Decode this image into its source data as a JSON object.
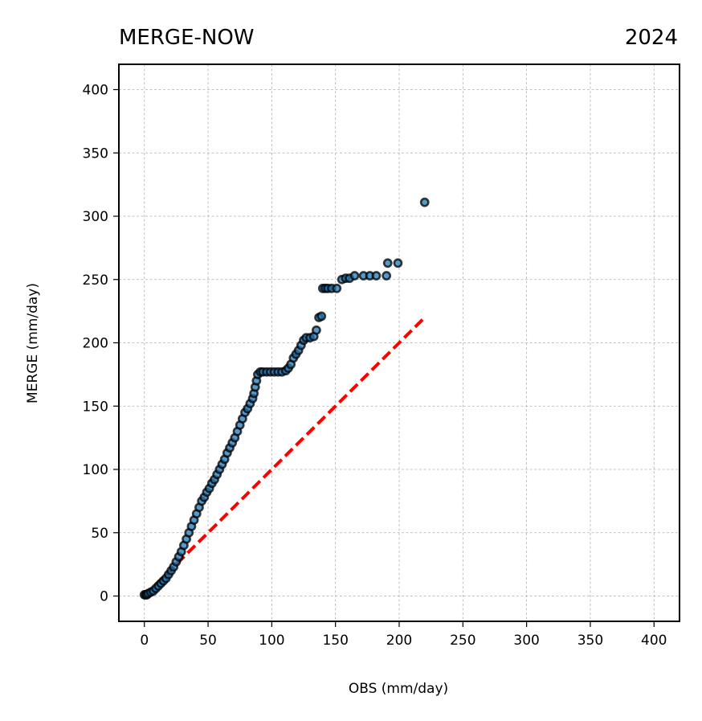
{
  "chart_data": {
    "type": "scatter",
    "title_left": "MERGE-NOW",
    "title_right": "2024",
    "xlabel": "OBS (mm/day)",
    "ylabel": "MERGE (mm/day)",
    "xlim": [
      -20,
      420
    ],
    "ylim": [
      -20,
      420
    ],
    "xticks": [
      0,
      50,
      100,
      150,
      200,
      250,
      300,
      350,
      400
    ],
    "yticks": [
      0,
      50,
      100,
      150,
      200,
      250,
      300,
      350,
      400
    ],
    "grid": true,
    "marker_fill": "#1f77b4",
    "marker_edge": "#000000",
    "reference_line": {
      "x": [
        0,
        220
      ],
      "y": [
        0,
        220
      ],
      "color": "#ff0000",
      "style": "dashed"
    },
    "series": [
      {
        "points": [
          [
            0,
            1
          ],
          [
            1,
            1
          ],
          [
            2,
            1
          ],
          [
            3,
            2
          ],
          [
            5,
            3
          ],
          [
            7,
            4
          ],
          [
            9,
            6
          ],
          [
            11,
            8
          ],
          [
            13,
            10
          ],
          [
            15,
            12
          ],
          [
            17,
            14
          ],
          [
            19,
            17
          ],
          [
            21,
            20
          ],
          [
            23,
            23
          ],
          [
            25,
            27
          ],
          [
            27,
            31
          ],
          [
            29,
            35
          ],
          [
            31,
            40
          ],
          [
            33,
            45
          ],
          [
            35,
            50
          ],
          [
            37,
            55
          ],
          [
            39,
            60
          ],
          [
            41,
            65
          ],
          [
            43,
            70
          ],
          [
            45,
            75
          ],
          [
            47,
            78
          ],
          [
            49,
            82
          ],
          [
            51,
            85
          ],
          [
            53,
            89
          ],
          [
            55,
            92
          ],
          [
            57,
            96
          ],
          [
            59,
            100
          ],
          [
            61,
            104
          ],
          [
            63,
            108
          ],
          [
            65,
            113
          ],
          [
            67,
            117
          ],
          [
            69,
            121
          ],
          [
            71,
            125
          ],
          [
            73,
            130
          ],
          [
            75,
            135
          ],
          [
            77,
            140
          ],
          [
            79,
            145
          ],
          [
            81,
            148
          ],
          [
            83,
            152
          ],
          [
            85,
            156
          ],
          [
            86,
            160
          ],
          [
            87,
            165
          ],
          [
            88,
            170
          ],
          [
            89,
            175
          ],
          [
            91,
            177
          ],
          [
            93,
            177
          ],
          [
            96,
            177
          ],
          [
            99,
            177
          ],
          [
            102,
            177
          ],
          [
            105,
            177
          ],
          [
            108,
            177
          ],
          [
            111,
            178
          ],
          [
            113,
            180
          ],
          [
            115,
            183
          ],
          [
            117,
            188
          ],
          [
            119,
            191
          ],
          [
            121,
            194
          ],
          [
            123,
            198
          ],
          [
            125,
            202
          ],
          [
            127,
            204
          ],
          [
            130,
            204
          ],
          [
            133,
            205
          ],
          [
            135,
            210
          ],
          [
            137,
            220
          ],
          [
            139,
            221
          ],
          [
            140,
            243
          ],
          [
            142,
            243
          ],
          [
            144,
            243
          ],
          [
            147,
            243
          ],
          [
            151,
            243
          ],
          [
            155,
            250
          ],
          [
            158,
            251
          ],
          [
            161,
            251
          ],
          [
            165,
            253
          ],
          [
            172,
            253
          ],
          [
            177,
            253
          ],
          [
            182,
            253
          ],
          [
            190,
            253
          ],
          [
            191,
            263
          ],
          [
            199,
            263
          ],
          [
            220,
            311
          ]
        ]
      }
    ]
  }
}
